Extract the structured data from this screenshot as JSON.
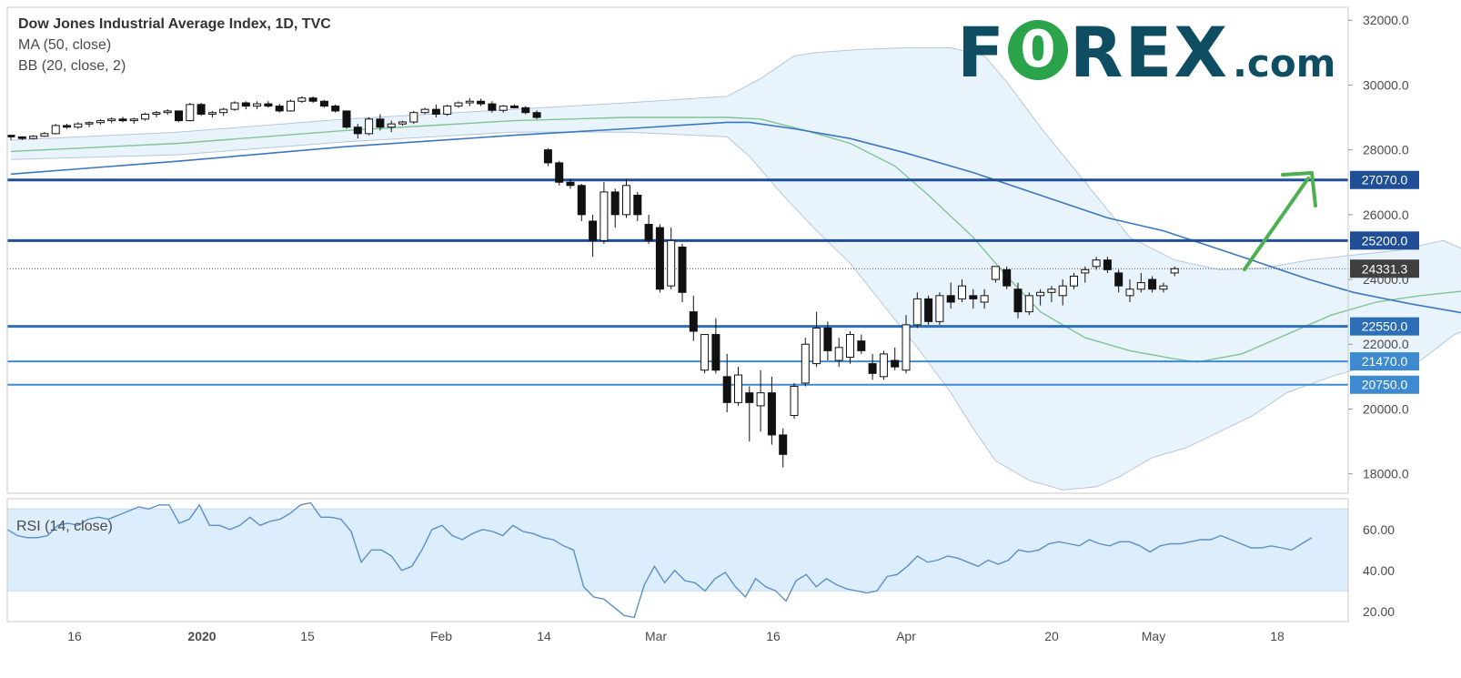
{
  "legend": {
    "title": "Dow Jones Industrial Average Index, 1D, TVC",
    "ma": "MA (50, close)",
    "bb": "BB (20, close, 2)",
    "rsi": "RSI (14, close)"
  },
  "logo": {
    "f": "F",
    "o": "0",
    "rest": "REX",
    "suffix": ".com"
  },
  "colors": {
    "level_line": "#1f4e96",
    "level_line_light": "#3d8ad1",
    "ma_line": "#3b77c1",
    "bb_basis": "#7fc492",
    "bb_fill": "#e8f3fc",
    "bb_border": "#b4c8dc",
    "candle_down": "#111111",
    "candle_up": "#ffffff",
    "arrow": "#4caf50",
    "rsi_line": "#5b8fc7",
    "rsi_band": "#dceefb",
    "axis_text": "#4a4a4a",
    "price_label_bg": "#3f3f3f"
  },
  "chart_data": {
    "type": "candlestick",
    "title": "Dow Jones Industrial Average Index, 1D, TVC",
    "price_axis": {
      "ylim": [
        17400,
        32400
      ],
      "ticks": [
        "32000.0",
        "30000.0",
        "28000.0",
        "26000.0",
        "24000.0",
        "22000.0",
        "20000.0",
        "18000.0"
      ]
    },
    "time_axis": {
      "labels": [
        "16",
        "2020",
        "15",
        "Feb",
        "14",
        "Mar",
        "16",
        "Apr",
        "20",
        "May",
        "18"
      ]
    },
    "last_price": "24331.3",
    "levels": [
      {
        "value": 27070,
        "label": "27070.0"
      },
      {
        "value": 25200,
        "label": "25200.0"
      },
      {
        "value": 22550,
        "label": "22550.0"
      },
      {
        "value": 21470,
        "label": "21470.0"
      },
      {
        "value": 20750,
        "label": "20750.0"
      }
    ],
    "candles": [
      [
        28450,
        28460,
        28300,
        28400
      ],
      [
        28400,
        28420,
        28300,
        28350
      ],
      [
        28350,
        28450,
        28320,
        28420
      ],
      [
        28420,
        28550,
        28400,
        28500
      ],
      [
        28500,
        28800,
        28480,
        28750
      ],
      [
        28750,
        28800,
        28650,
        28700
      ],
      [
        28700,
        28850,
        28650,
        28800
      ],
      [
        28800,
        28880,
        28700,
        28840
      ],
      [
        28840,
        28950,
        28780,
        28900
      ],
      [
        28900,
        29000,
        28820,
        28950
      ],
      [
        28950,
        29020,
        28850,
        28900
      ],
      [
        28900,
        28990,
        28800,
        28950
      ],
      [
        28950,
        29150,
        28900,
        29100
      ],
      [
        29100,
        29200,
        29000,
        29150
      ],
      [
        29150,
        29250,
        29080,
        29200
      ],
      [
        29200,
        29180,
        28850,
        28900
      ],
      [
        28900,
        29450,
        28880,
        29400
      ],
      [
        29400,
        29450,
        29050,
        29100
      ],
      [
        29100,
        29200,
        29000,
        29150
      ],
      [
        29150,
        29300,
        29050,
        29250
      ],
      [
        29250,
        29500,
        29200,
        29450
      ],
      [
        29450,
        29500,
        29250,
        29350
      ],
      [
        29350,
        29500,
        29250,
        29420
      ],
      [
        29420,
        29500,
        29300,
        29350
      ],
      [
        29350,
        29420,
        29150,
        29200
      ],
      [
        29200,
        29550,
        29180,
        29500
      ],
      [
        29500,
        29650,
        29450,
        29600
      ],
      [
        29600,
        29650,
        29450,
        29500
      ],
      [
        29500,
        29540,
        29300,
        29350
      ],
      [
        29350,
        29400,
        29150,
        29200
      ],
      [
        29200,
        29200,
        28650,
        28700
      ],
      [
        28700,
        28800,
        28350,
        28500
      ],
      [
        28500,
        29000,
        28450,
        28950
      ],
      [
        28950,
        29100,
        28600,
        28700
      ],
      [
        28700,
        28900,
        28550,
        28800
      ],
      [
        28800,
        28900,
        28750,
        28860
      ],
      [
        28860,
        29200,
        28800,
        29150
      ],
      [
        29150,
        29300,
        29100,
        29250
      ],
      [
        29250,
        29400,
        29000,
        29100
      ],
      [
        29100,
        29400,
        29050,
        29350
      ],
      [
        29350,
        29500,
        29300,
        29450
      ],
      [
        29450,
        29600,
        29350,
        29500
      ],
      [
        29500,
        29580,
        29350,
        29420
      ],
      [
        29420,
        29500,
        29150,
        29220
      ],
      [
        29220,
        29380,
        29150,
        29350
      ],
      [
        29350,
        29400,
        29280,
        29300
      ],
      [
        29300,
        29350,
        29100,
        29150
      ],
      [
        29150,
        29220,
        28950,
        29000
      ],
      [
        28000,
        28050,
        27500,
        27600
      ],
      [
        27600,
        27650,
        26900,
        27000
      ],
      [
        27000,
        27100,
        26800,
        26900
      ],
      [
        26900,
        26950,
        25800,
        26000
      ],
      [
        25800,
        26000,
        24700,
        25200
      ],
      [
        25200,
        27000,
        25100,
        26700
      ],
      [
        26700,
        26800,
        25600,
        26000
      ],
      [
        26000,
        27100,
        25900,
        26900
      ],
      [
        26600,
        26700,
        25800,
        26000
      ],
      [
        25700,
        26000,
        25100,
        25200
      ],
      [
        25600,
        25700,
        23600,
        23700
      ],
      [
        23800,
        25600,
        23700,
        25200
      ],
      [
        25000,
        25100,
        23300,
        23600
      ],
      [
        23000,
        23500,
        22100,
        22400
      ],
      [
        21200,
        22300,
        21100,
        22300
      ],
      [
        22300,
        22800,
        21100,
        21200
      ],
      [
        21000,
        21700,
        19900,
        20200
      ],
      [
        20200,
        21300,
        20100,
        21050
      ],
      [
        20500,
        20700,
        19000,
        20200
      ],
      [
        20100,
        21200,
        19300,
        20500
      ],
      [
        20500,
        21000,
        18900,
        19200
      ],
      [
        19200,
        19400,
        18200,
        18600
      ],
      [
        19800,
        20800,
        19700,
        20700
      ],
      [
        20800,
        22200,
        20700,
        22000
      ],
      [
        21400,
        23000,
        21300,
        22500
      ],
      [
        22500,
        22700,
        21500,
        21800
      ],
      [
        21500,
        22200,
        21300,
        21900
      ],
      [
        21600,
        22400,
        21400,
        22300
      ],
      [
        22100,
        22300,
        21700,
        21800
      ],
      [
        21400,
        21700,
        20900,
        21100
      ],
      [
        21000,
        21800,
        20900,
        21700
      ],
      [
        21500,
        21900,
        21200,
        21300
      ],
      [
        21200,
        22900,
        21100,
        22600
      ],
      [
        22600,
        23600,
        22500,
        23400
      ],
      [
        23400,
        23500,
        22600,
        22700
      ],
      [
        22700,
        23600,
        22600,
        23500
      ],
      [
        23500,
        23900,
        23100,
        23300
      ],
      [
        23400,
        24000,
        23300,
        23800
      ],
      [
        23500,
        23700,
        23100,
        23400
      ],
      [
        23300,
        23700,
        23100,
        23500
      ],
      [
        24000,
        24400,
        23900,
        24400
      ],
      [
        24300,
        24400,
        23700,
        23800
      ],
      [
        23700,
        23900,
        22800,
        23000
      ],
      [
        23000,
        23600,
        22900,
        23500
      ],
      [
        23500,
        23700,
        23200,
        23600
      ],
      [
        23600,
        23800,
        23300,
        23700
      ],
      [
        23500,
        24000,
        23200,
        23800
      ],
      [
        23800,
        24200,
        23700,
        24100
      ],
      [
        24200,
        24400,
        23900,
        24300
      ],
      [
        24400,
        24700,
        24300,
        24600
      ],
      [
        24600,
        24700,
        24200,
        24300
      ],
      [
        24200,
        24300,
        23600,
        23800
      ],
      [
        23500,
        24000,
        23300,
        23700
      ],
      [
        23700,
        24200,
        23600,
        23900
      ],
      [
        24000,
        24100,
        23600,
        23700
      ],
      [
        23700,
        23900,
        23600,
        23800
      ],
      [
        24200,
        24400,
        24100,
        24331
      ]
    ],
    "ma50": [
      [
        0,
        27250
      ],
      [
        15,
        27650
      ],
      [
        30,
        28100
      ],
      [
        45,
        28450
      ],
      [
        55,
        28650
      ],
      [
        64,
        28850
      ],
      [
        66,
        28850
      ],
      [
        70,
        28650
      ],
      [
        75,
        28350
      ],
      [
        80,
        27900
      ],
      [
        86,
        27300
      ],
      [
        92,
        26600
      ],
      [
        98,
        25900
      ],
      [
        103,
        25500
      ],
      [
        110,
        24700
      ],
      [
        116,
        24000
      ],
      [
        120,
        23600
      ],
      [
        125,
        23250
      ],
      [
        130,
        22950
      ],
      [
        133,
        22900
      ]
    ],
    "bb_basis": [
      [
        0,
        27950
      ],
      [
        15,
        28200
      ],
      [
        30,
        28600
      ],
      [
        45,
        28900
      ],
      [
        55,
        29000
      ],
      [
        64,
        29000
      ],
      [
        67,
        28950
      ],
      [
        71,
        28600
      ],
      [
        75,
        28200
      ],
      [
        79,
        27500
      ],
      [
        82,
        26600
      ],
      [
        86,
        25300
      ],
      [
        89,
        24100
      ],
      [
        92,
        23000
      ],
      [
        96,
        22200
      ],
      [
        100,
        21800
      ],
      [
        104,
        21550
      ],
      [
        106,
        21450
      ],
      [
        110,
        21700
      ],
      [
        114,
        22300
      ],
      [
        118,
        22900
      ],
      [
        122,
        23300
      ],
      [
        126,
        23500
      ],
      [
        130,
        23650
      ],
      [
        133,
        23800
      ]
    ],
    "bb_upper": [
      [
        0,
        28300
      ],
      [
        15,
        28550
      ],
      [
        30,
        28950
      ],
      [
        45,
        29250
      ],
      [
        55,
        29450
      ],
      [
        64,
        29650
      ],
      [
        67,
        30200
      ],
      [
        70,
        30900
      ],
      [
        72,
        31000
      ],
      [
        76,
        31100
      ],
      [
        80,
        31150
      ],
      [
        84,
        31150
      ],
      [
        87,
        30900
      ],
      [
        89,
        30100
      ],
      [
        92,
        28700
      ],
      [
        96,
        27000
      ],
      [
        100,
        25300
      ],
      [
        104,
        24600
      ],
      [
        108,
        24300
      ],
      [
        112,
        24350
      ],
      [
        116,
        24600
      ],
      [
        120,
        24750
      ],
      [
        124,
        24900
      ],
      [
        128,
        25200
      ],
      [
        131,
        24750
      ],
      [
        133,
        24750
      ]
    ],
    "bb_lower": [
      [
        0,
        27700
      ],
      [
        15,
        27850
      ],
      [
        30,
        28250
      ],
      [
        45,
        28550
      ],
      [
        55,
        28550
      ],
      [
        64,
        28400
      ],
      [
        66,
        27800
      ],
      [
        69,
        26600
      ],
      [
        72,
        25500
      ],
      [
        75,
        24500
      ],
      [
        78,
        23200
      ],
      [
        81,
        21900
      ],
      [
        84,
        20500
      ],
      [
        86,
        19400
      ],
      [
        88,
        18400
      ],
      [
        91,
        17800
      ],
      [
        94,
        17500
      ],
      [
        97,
        17600
      ],
      [
        99,
        17900
      ],
      [
        102,
        18500
      ],
      [
        105,
        18800
      ],
      [
        108,
        19300
      ],
      [
        111,
        19800
      ],
      [
        114,
        20500
      ],
      [
        118,
        21000
      ],
      [
        122,
        21400
      ],
      [
        126,
        21500
      ],
      [
        129,
        22300
      ],
      [
        133,
        22800
      ]
    ],
    "rsi": {
      "ylim": [
        15,
        75
      ],
      "ticks": [
        "60.00",
        "40.00",
        "20.00"
      ],
      "band": [
        30,
        70
      ],
      "values": [
        60,
        57,
        56,
        56,
        57,
        62,
        63,
        62,
        65,
        66,
        65,
        67,
        69,
        71,
        70,
        72,
        72,
        63,
        65,
        72,
        62,
        62,
        60,
        62,
        66,
        62,
        64,
        65,
        68,
        72,
        73,
        66,
        66,
        65,
        59,
        44,
        50,
        50,
        47,
        40,
        42,
        50,
        60,
        62,
        57,
        55,
        58,
        60,
        59,
        57,
        62,
        59,
        58,
        56,
        55,
        52,
        50,
        32,
        27,
        26,
        22,
        18,
        17,
        33,
        42,
        34,
        40,
        35,
        34,
        30,
        36,
        39,
        32,
        27,
        36,
        32,
        30,
        25,
        35,
        38,
        32,
        36,
        33,
        31,
        30,
        29,
        30,
        37,
        38,
        42,
        47,
        44,
        45,
        47,
        46,
        44,
        42,
        45,
        43,
        45,
        50,
        49,
        50,
        53,
        54,
        53,
        52,
        55,
        53,
        52,
        54,
        54,
        52,
        49,
        52,
        53,
        53,
        54,
        55,
        55,
        57,
        55,
        53,
        51,
        51,
        52,
        51,
        50,
        53,
        56
      ]
    }
  }
}
